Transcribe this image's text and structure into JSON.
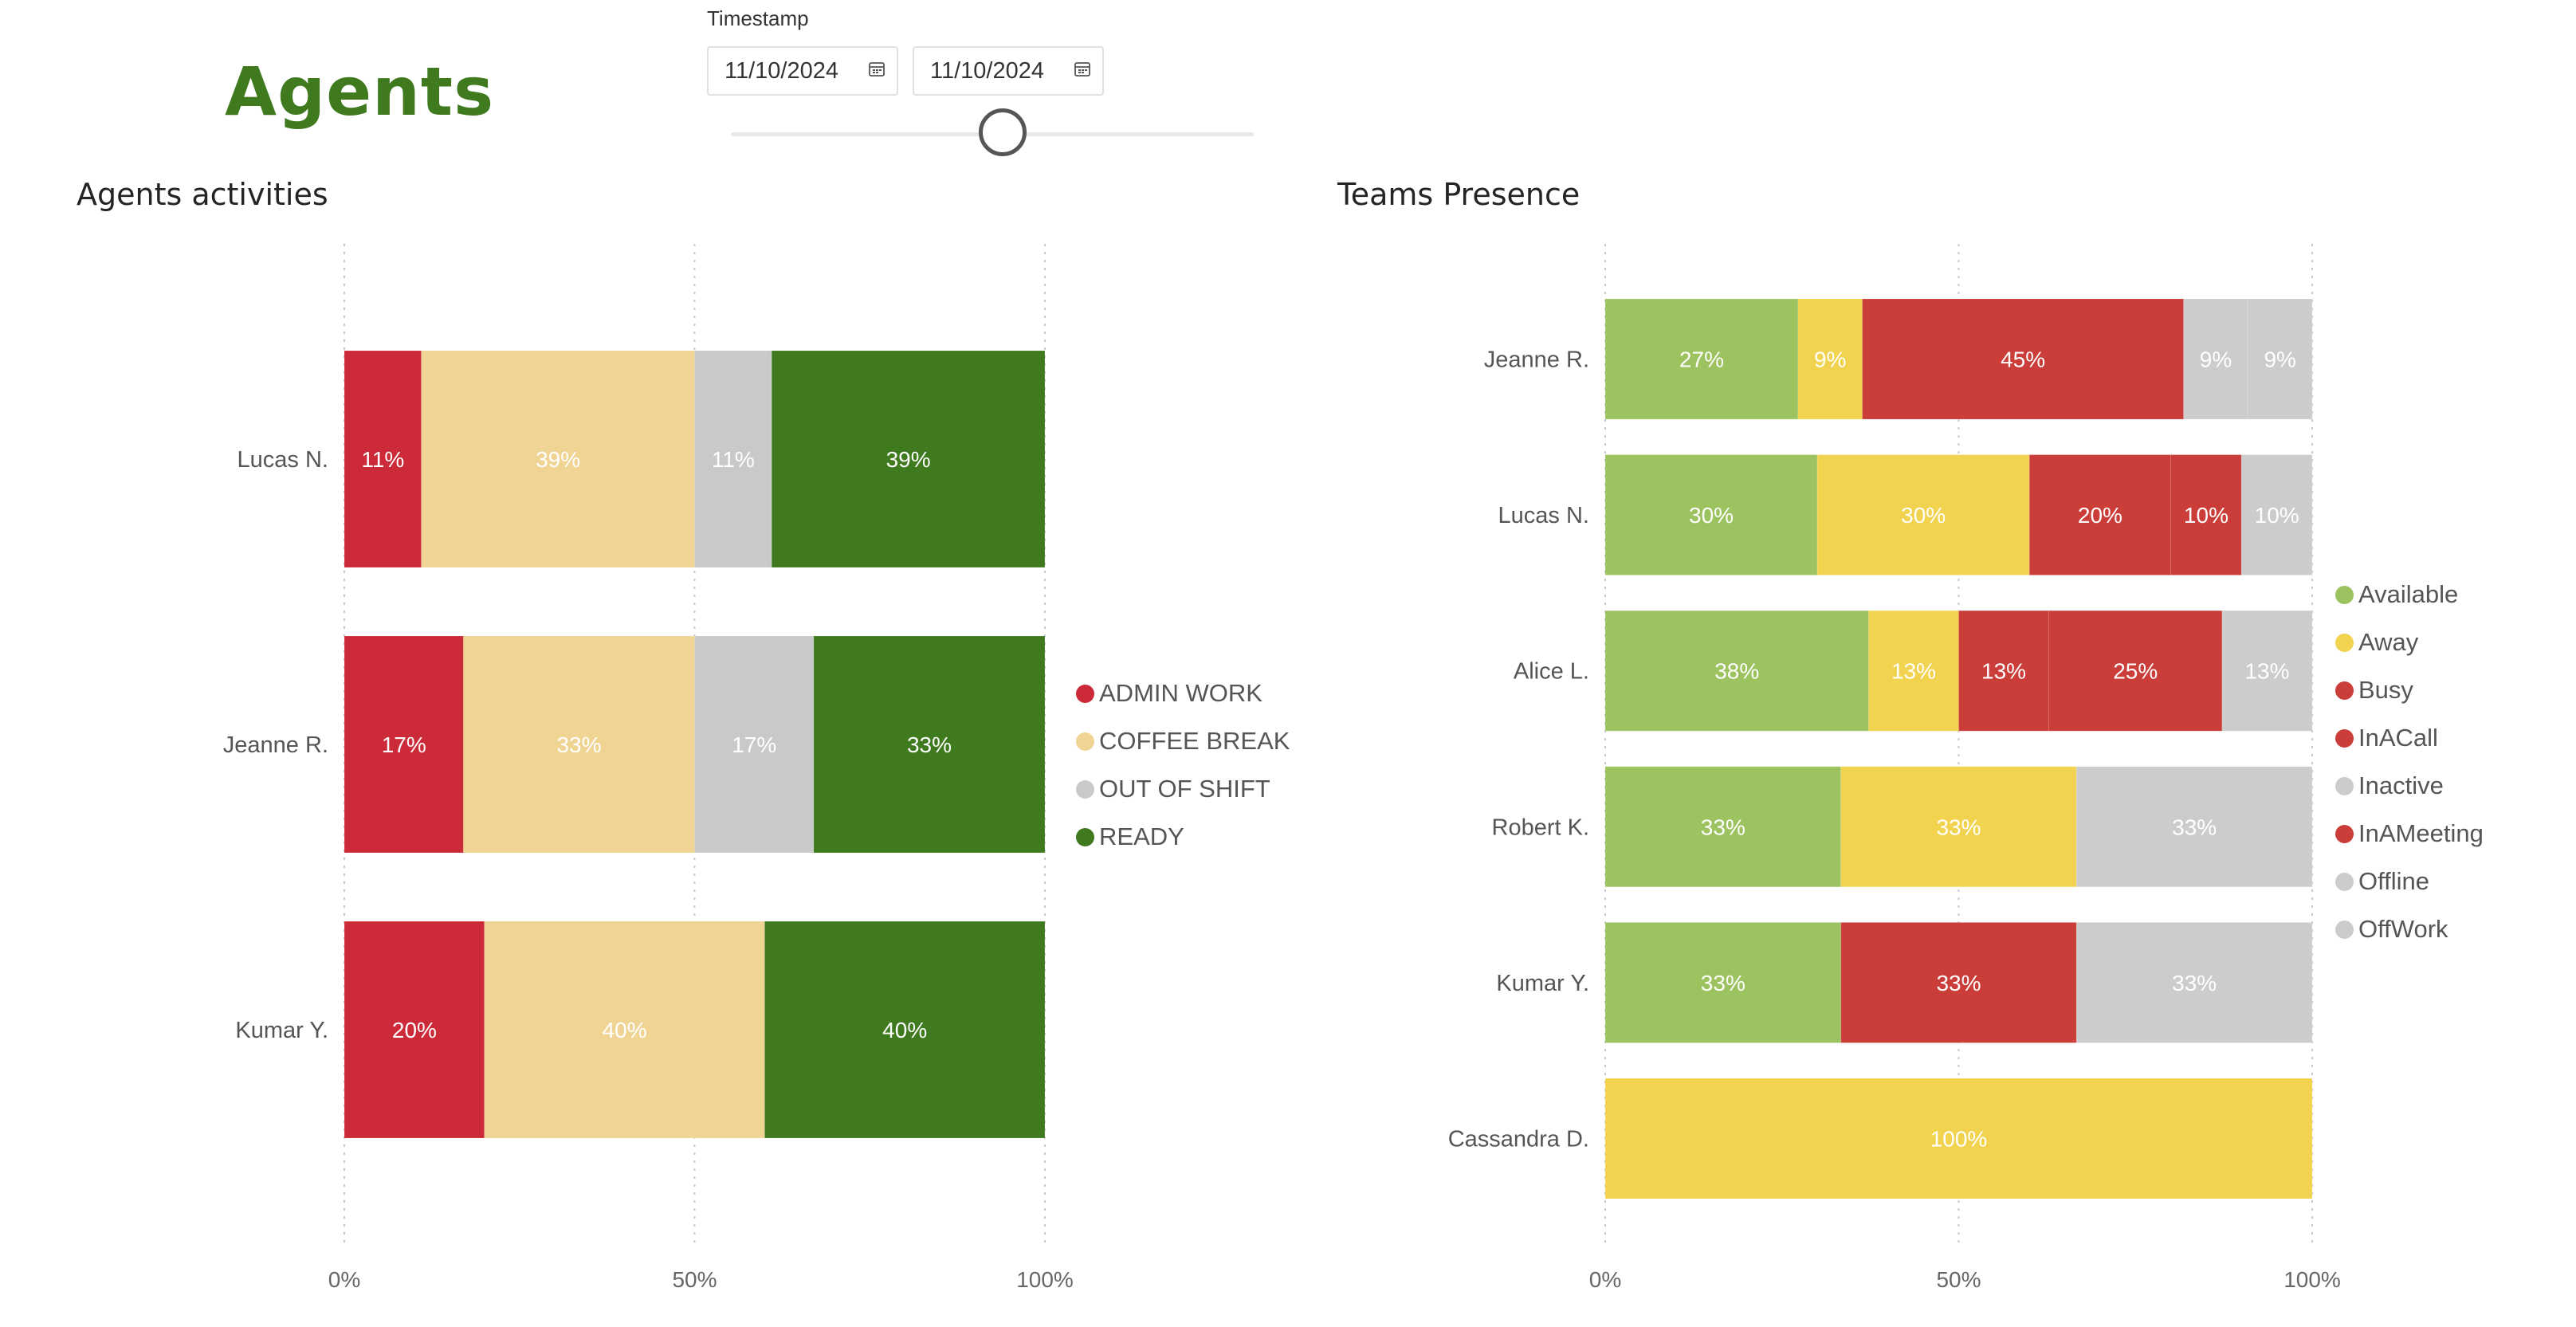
{
  "page": {
    "title": "Agents"
  },
  "timestamp_filter": {
    "label": "Timestamp",
    "start_date": "11/10/2024",
    "end_date": "11/10/2024",
    "slider_position": 0.52
  },
  "colors": {
    "admin_work": "#cc2a38",
    "coffee_break": "#f0d494",
    "out_of_shift": "#c9c9c9",
    "ready": "#3f7a1f",
    "available": "#9dc360",
    "away": "#f2d34f",
    "busy": "#cb3d38",
    "inactive": "#cccccc"
  },
  "chart_data": [
    {
      "type": "bar",
      "orientation": "horizontal",
      "stacking": "100%",
      "title": "Agents activities",
      "categories": [
        "Lucas N.",
        "Jeanne R.",
        "Kumar Y."
      ],
      "series": [
        {
          "name": "ADMIN WORK",
          "color": "#cc2a38",
          "label_color": "#ffffff",
          "values": [
            11,
            17,
            20
          ]
        },
        {
          "name": "COFFEE BREAK",
          "color": "#f0d494",
          "label_color": "#ffffff",
          "values": [
            39,
            33,
            40
          ]
        },
        {
          "name": "OUT OF SHIFT",
          "color": "#c9c9c9",
          "label_color": "#ffffff",
          "values": [
            11,
            17,
            0
          ]
        },
        {
          "name": "READY",
          "color": "#3f7a1f",
          "label_color": "#ffffff",
          "values": [
            39,
            33,
            40
          ]
        }
      ],
      "xaxis_ticks": [
        "0%",
        "50%",
        "100%"
      ],
      "xlim": [
        0,
        100
      ],
      "grid": true,
      "legend_position": "right"
    },
    {
      "type": "bar",
      "orientation": "horizontal",
      "stacking": "100%",
      "title": "Teams Presence",
      "categories": [
        "Jeanne R.",
        "Lucas N.",
        "Alice L.",
        "Robert K.",
        "Kumar Y.",
        "Cassandra D."
      ],
      "series": [
        {
          "name": "Available",
          "color": "#9dc360",
          "label_color": "#ffffff",
          "values": [
            27,
            30,
            38,
            33,
            33,
            0
          ]
        },
        {
          "name": "Away",
          "color": "#f2d34f",
          "label_color": "#ffffff",
          "values": [
            9,
            30,
            13,
            33,
            0,
            100
          ]
        },
        {
          "name": "Busy",
          "color": "#cb3d38",
          "label_color": "#ffffff",
          "values": [
            45,
            20,
            13,
            0,
            33,
            0
          ]
        },
        {
          "name": "InACall",
          "color": "#cb3d38",
          "label_color": "#ffffff",
          "values": [
            0,
            10,
            25,
            0,
            0,
            0
          ]
        },
        {
          "name": "Inactive",
          "color": "#cccccc",
          "label_color": "#ffffff",
          "values": [
            9,
            10,
            13,
            33,
            33,
            0
          ]
        },
        {
          "name": "InAMeeting",
          "color": "#cb3d38",
          "label_color": "#ffffff",
          "values": [
            0,
            0,
            0,
            0,
            0,
            0
          ]
        },
        {
          "name": "Offline",
          "color": "#cccccc",
          "label_color": "#ffffff",
          "values": [
            9,
            0,
            0,
            0,
            0,
            0
          ]
        },
        {
          "name": "OffWork",
          "color": "#cccccc",
          "label_color": "#ffffff",
          "values": [
            0,
            0,
            0,
            0,
            0,
            0
          ]
        }
      ],
      "xaxis_ticks": [
        "0%",
        "50%",
        "100%"
      ],
      "xlim": [
        0,
        100
      ],
      "grid": true,
      "legend_position": "right"
    }
  ]
}
